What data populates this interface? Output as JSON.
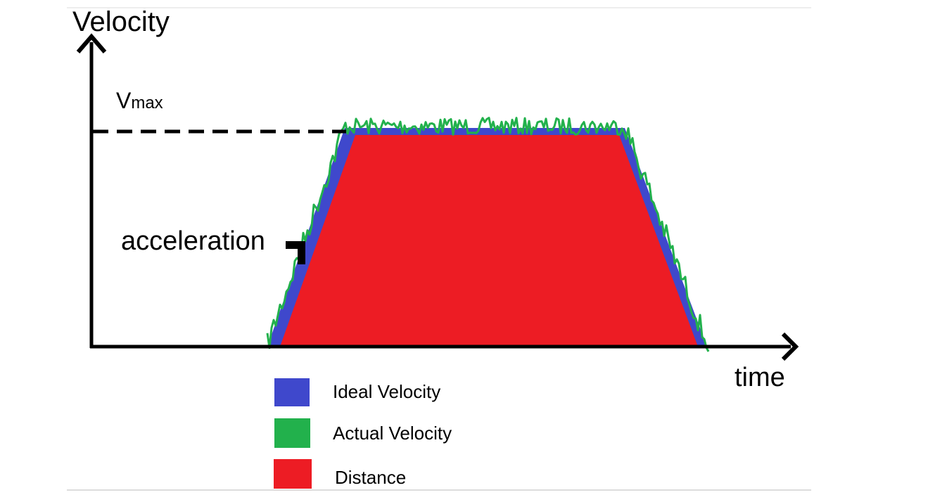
{
  "labels": {
    "y_axis": "Velocity",
    "x_axis": "time",
    "vmax_v": "V",
    "vmax_sub": "max",
    "acceleration": "acceleration"
  },
  "legend": [
    {
      "label": "Ideal Velocity",
      "color": "#3f48cc"
    },
    {
      "label": "Actual Velocity",
      "color": "#22b14c"
    },
    {
      "label": "Distance",
      "color": "#ed1c24"
    }
  ],
  "colors": {
    "axis": "#000000",
    "ideal": "#3f48cc",
    "actual": "#22b14c",
    "distance": "#ed1c24",
    "divider": "#d9d9d9"
  }
}
